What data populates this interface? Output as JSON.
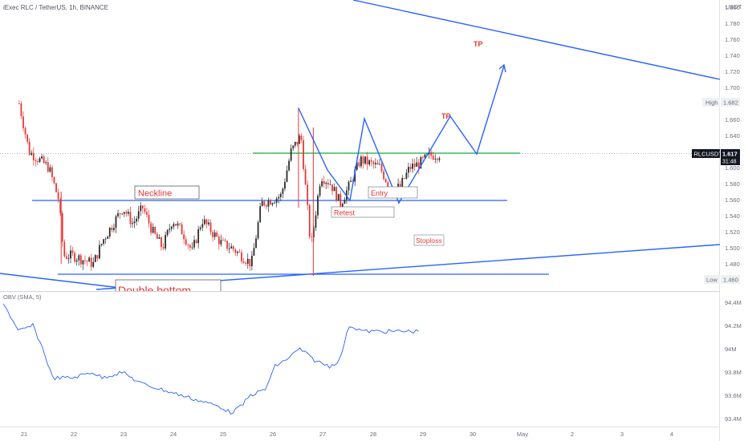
{
  "header": {
    "title": "iExec RLC / TetherUS, 1h, BINANCE",
    "ticker": "RLCUSDT",
    "price": "1.617",
    "countdown": "31:48",
    "currency": "USDT",
    "high_label": "High",
    "high_value": "1.682",
    "low_label": "Low",
    "low_value": "1.460"
  },
  "annotations": {
    "tp_upper": "TP",
    "tp_lower": "TP",
    "neckline": "Neckline",
    "entry": "Entry",
    "retest": "Retest",
    "stoploss": "Stoploss",
    "double_bottom": "Double bottom"
  },
  "obv": {
    "label": "OBV (SMA, 5)"
  },
  "colors": {
    "up": "#26a69a",
    "down": "#ef5350",
    "candle_up": "#2b2b2b",
    "candle_down": "#e53935",
    "line": "#2962ff",
    "green_level": "#19b341",
    "annotation_red": "#e53935"
  },
  "chart_data": [
    {
      "type": "candlestick",
      "title": "iExec RLC / TetherUS, 1h, BINANCE",
      "y_ticks": [
        "1.800",
        "1.780",
        "1.760",
        "1.740",
        "1.720",
        "1.700",
        "1.682",
        "1.660",
        "1.640",
        "1.620",
        "1.600",
        "1.580",
        "1.560",
        "1.540",
        "1.520",
        "1.500",
        "1.480",
        "1.460"
      ],
      "x_ticks": [
        "21",
        "22",
        "23",
        "24",
        "25",
        "26",
        "27",
        "28",
        "29",
        "30",
        "May",
        "2",
        "3",
        "4"
      ],
      "ylim": [
        1.45,
        1.82
      ],
      "levels": {
        "neckline": 1.56,
        "support": 1.467,
        "current": 1.617,
        "high": 1.682,
        "low": 1.46
      },
      "price_path": [
        {
          "x": "20.9",
          "y": 1.68
        },
        {
          "x": "21.1",
          "y": 1.62
        },
        {
          "x": "21.3",
          "y": 1.61
        },
        {
          "x": "21.5",
          "y": 1.6
        },
        {
          "x": "21.7",
          "y": 1.56
        },
        {
          "x": "21.8",
          "y": 1.49
        },
        {
          "x": "22.0",
          "y": 1.49
        },
        {
          "x": "22.2",
          "y": 1.485
        },
        {
          "x": "22.4",
          "y": 1.48
        },
        {
          "x": "22.6",
          "y": 1.51
        },
        {
          "x": "22.8",
          "y": 1.53
        },
        {
          "x": "23.0",
          "y": 1.55
        },
        {
          "x": "23.2",
          "y": 1.53
        },
        {
          "x": "23.4",
          "y": 1.55
        },
        {
          "x": "23.6",
          "y": 1.52
        },
        {
          "x": "23.8",
          "y": 1.5
        },
        {
          "x": "24.0",
          "y": 1.535
        },
        {
          "x": "24.2",
          "y": 1.52
        },
        {
          "x": "24.4",
          "y": 1.495
        },
        {
          "x": "24.6",
          "y": 1.535
        },
        {
          "x": "24.8",
          "y": 1.52
        },
        {
          "x": "25.0",
          "y": 1.505
        },
        {
          "x": "25.2",
          "y": 1.5
        },
        {
          "x": "25.4",
          "y": 1.49
        },
        {
          "x": "25.6",
          "y": 1.48
        },
        {
          "x": "25.8",
          "y": 1.555
        },
        {
          "x": "26.0",
          "y": 1.56
        },
        {
          "x": "26.2",
          "y": 1.565
        },
        {
          "x": "26.4",
          "y": 1.62
        },
        {
          "x": "26.6",
          "y": 1.64
        },
        {
          "x": "26.8",
          "y": 1.5
        },
        {
          "x": "27.0",
          "y": 1.59
        },
        {
          "x": "27.2",
          "y": 1.58
        },
        {
          "x": "27.4",
          "y": 1.555
        },
        {
          "x": "27.6",
          "y": 1.58
        },
        {
          "x": "27.8",
          "y": 1.61
        },
        {
          "x": "28.0",
          "y": 1.605
        },
        {
          "x": "28.2",
          "y": 1.6
        },
        {
          "x": "28.4",
          "y": 1.575
        },
        {
          "x": "28.6",
          "y": 1.575
        },
        {
          "x": "28.8",
          "y": 1.6
        },
        {
          "x": "29.0",
          "y": 1.605
        },
        {
          "x": "29.2",
          "y": 1.615
        },
        {
          "x": "29.4",
          "y": 1.617
        }
      ],
      "projection": [
        {
          "x": "29.4",
          "y": 1.62
        },
        {
          "x": "29.9",
          "y": 1.665
        },
        {
          "x": "30.0",
          "y": 1.62
        },
        {
          "x": "30.6",
          "y": 1.726
        }
      ]
    },
    {
      "type": "line",
      "title": "OBV (SMA, 5)",
      "y_ticks": [
        "94.4M",
        "94.2M",
        "94M",
        "93.8M",
        "93.6M",
        "93.4M"
      ],
      "ylim": [
        93.4,
        94.5
      ],
      "x": [
        "21.0",
        "21.3",
        "21.6",
        "21.8",
        "22.0",
        "22.4",
        "22.8",
        "23.0",
        "23.4",
        "23.8",
        "24.2",
        "24.6",
        "25.0",
        "25.4",
        "25.6",
        "25.8",
        "26.0",
        "26.3",
        "26.5",
        "26.7",
        "27.0",
        "27.3",
        "27.6",
        "27.8",
        "28.0",
        "28.3",
        "28.6",
        "29.0",
        "29.4"
      ],
      "values": [
        94.4,
        94.15,
        94.2,
        94.0,
        93.75,
        93.75,
        93.8,
        93.75,
        93.8,
        93.7,
        93.65,
        93.6,
        93.55,
        93.5,
        93.45,
        93.5,
        93.6,
        93.65,
        93.85,
        93.9,
        94.0,
        93.9,
        93.85,
        93.9,
        94.2,
        94.15,
        94.15,
        94.15,
        94.15
      ]
    }
  ]
}
